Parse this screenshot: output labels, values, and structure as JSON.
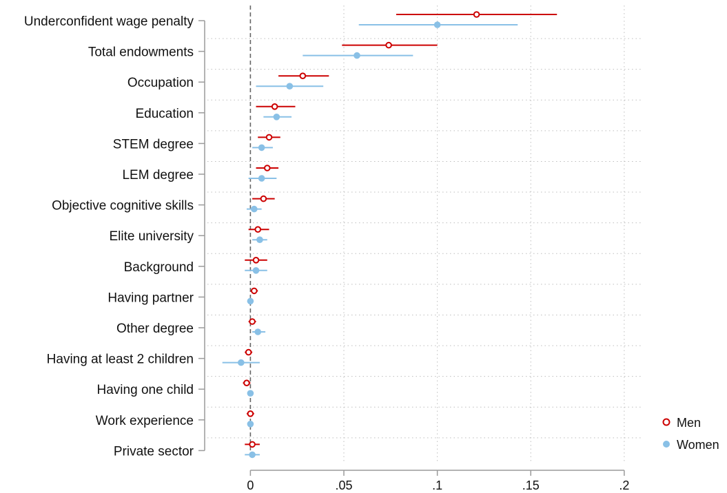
{
  "chart_data": {
    "type": "scatter",
    "subtype": "coefficient-plot-with-confidence-intervals",
    "categories": [
      "Underconfident wage penalty",
      "Total endowments",
      "Occupation",
      "Education",
      "STEM degree",
      "LEM degree",
      "Objective cognitive skills",
      "Elite university",
      "Background",
      "Having partner",
      "Other degree",
      "Having at least 2 children",
      "Having one child",
      "Work experience",
      "Private sector"
    ],
    "x_ticks": [
      0,
      0.05,
      0.1,
      0.15,
      0.2
    ],
    "x_tick_labels": [
      "0",
      ".05",
      ".1",
      ".15",
      ".2"
    ],
    "xlim": [
      -0.023,
      0.21
    ],
    "reference_line": 0,
    "grid": "dotted horizontal",
    "legend_position": "right-bottom",
    "series": [
      {
        "name": "Men",
        "color": "#cc0000",
        "marker": "hollow-circle",
        "values": [
          0.121,
          0.074,
          0.028,
          0.013,
          0.01,
          0.009,
          0.007,
          0.004,
          0.003,
          0.002,
          0.001,
          -0.001,
          -0.002,
          0.0,
          0.001
        ],
        "ci_low": [
          0.078,
          0.049,
          0.015,
          0.003,
          0.004,
          0.003,
          0.001,
          -0.001,
          -0.003,
          0.0,
          -0.001,
          -0.003,
          -0.004,
          -0.002,
          -0.003
        ],
        "ci_high": [
          0.164,
          0.1,
          0.042,
          0.024,
          0.016,
          0.015,
          0.013,
          0.01,
          0.009,
          0.004,
          0.003,
          0.001,
          0.0,
          0.002,
          0.005
        ]
      },
      {
        "name": "Women",
        "color": "#89c0e6",
        "marker": "filled-circle",
        "values": [
          0.1,
          0.057,
          0.021,
          0.014,
          0.006,
          0.006,
          0.002,
          0.005,
          0.003,
          0.0,
          0.004,
          -0.005,
          0.0,
          0.0,
          0.001
        ],
        "ci_low": [
          0.058,
          0.028,
          0.003,
          0.007,
          0.001,
          -0.001,
          -0.002,
          0.001,
          -0.003,
          -0.001,
          0.001,
          -0.015,
          -0.001,
          -0.001,
          -0.003
        ],
        "ci_high": [
          0.143,
          0.087,
          0.039,
          0.022,
          0.012,
          0.014,
          0.006,
          0.009,
          0.009,
          0.001,
          0.008,
          0.005,
          0.001,
          0.001,
          0.005
        ]
      }
    ]
  }
}
